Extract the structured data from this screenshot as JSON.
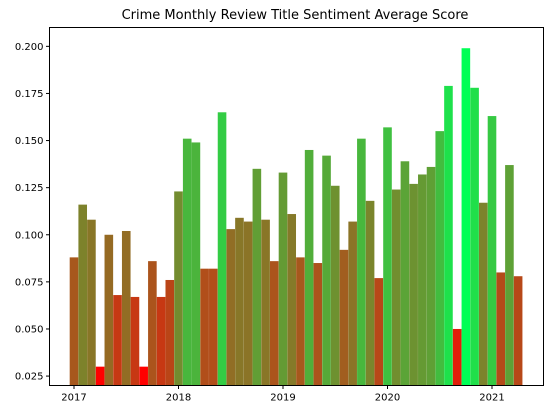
{
  "chart_data": {
    "type": "bar",
    "title": "Crime Monthly Review Title Sentiment Average Score",
    "xlabel": "",
    "ylabel": "",
    "x_tick_labels": [
      "2017",
      "2018",
      "2019",
      "2020",
      "2021"
    ],
    "x_tick_values": [
      "2017-01",
      "2018-01",
      "2019-01",
      "2020-01",
      "2021-01"
    ],
    "ylim": [
      0.02,
      0.21
    ],
    "y_ticks": [
      0.025,
      0.05,
      0.075,
      0.1,
      0.125,
      0.15,
      0.175,
      0.2
    ],
    "y_tick_labels": [
      "0.025",
      "0.050",
      "0.075",
      "0.100",
      "0.125",
      "0.150",
      "0.175",
      "0.200"
    ],
    "grid": false,
    "color_scale": {
      "low": "#ff0000",
      "high": "#00ff55"
    },
    "series": [
      {
        "x": [
          "2017-01",
          "2017-02",
          "2017-03",
          "2017-04",
          "2017-05",
          "2017-06",
          "2017-07",
          "2017-08",
          "2017-09",
          "2017-10",
          "2017-11",
          "2017-12",
          "2018-01",
          "2018-02",
          "2018-03",
          "2018-04",
          "2018-05",
          "2018-06",
          "2018-07",
          "2018-08",
          "2018-09",
          "2018-10",
          "2018-11",
          "2018-12",
          "2019-01",
          "2019-02",
          "2019-03",
          "2019-04",
          "2019-05",
          "2019-06",
          "2019-07",
          "2019-08",
          "2019-09",
          "2019-10",
          "2019-11",
          "2019-12",
          "2020-01",
          "2020-02",
          "2020-03",
          "2020-04",
          "2020-05",
          "2020-06",
          "2020-07",
          "2020-08",
          "2020-09",
          "2020-10",
          "2020-11",
          "2020-12",
          "2021-01",
          "2021-02",
          "2021-03",
          "2021-04"
        ],
        "values": [
          0.088,
          0.116,
          0.108,
          0.03,
          0.1,
          0.068,
          0.102,
          0.067,
          0.03,
          0.086,
          0.067,
          0.076,
          0.123,
          0.151,
          0.149,
          0.082,
          0.082,
          0.165,
          0.103,
          0.109,
          0.107,
          0.135,
          0.108,
          0.086,
          0.133,
          0.111,
          0.088,
          0.145,
          0.085,
          0.142,
          0.126,
          0.092,
          0.107,
          0.151,
          0.118,
          0.077,
          0.157,
          0.124,
          0.139,
          0.127,
          0.132,
          0.136,
          0.155,
          0.179,
          0.05,
          0.199,
          0.178,
          0.117,
          0.163,
          0.08,
          0.137,
          0.078
        ]
      }
    ]
  }
}
